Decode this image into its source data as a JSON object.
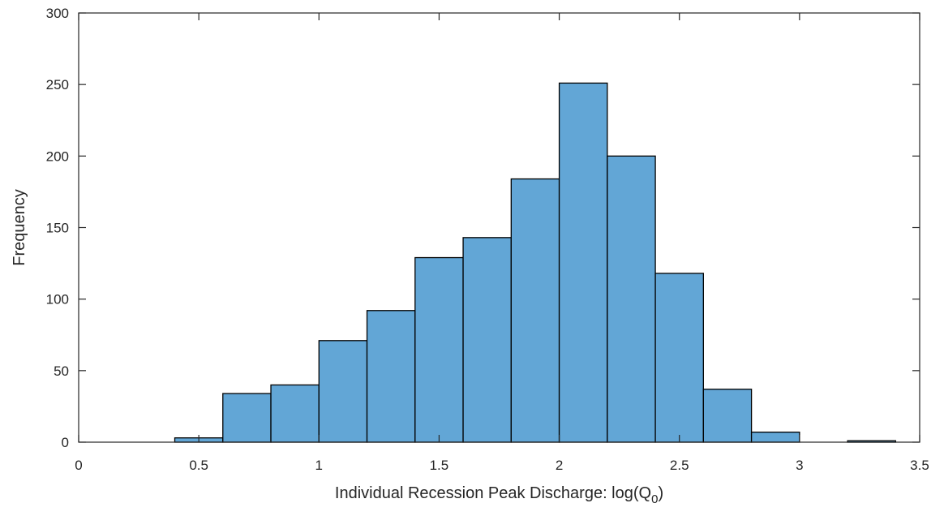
{
  "chart_data": {
    "type": "histogram",
    "title": "",
    "xlabel": {
      "main": "Individual Recession Peak Discharge: log(Q",
      "sub": "0",
      "close": ")"
    },
    "ylabel": "Frequency",
    "xlim": [
      0,
      3.5
    ],
    "ylim": [
      0,
      300
    ],
    "xticks": [
      0,
      0.5,
      1,
      1.5,
      2,
      2.5,
      3,
      3.5
    ],
    "xtick_labels": [
      "0",
      "0.5",
      "1",
      "1.5",
      "2",
      "2.5",
      "3",
      "3.5"
    ],
    "yticks": [
      0,
      50,
      100,
      150,
      200,
      250,
      300
    ],
    "ytick_labels": [
      "0",
      "50",
      "100",
      "150",
      "200",
      "250",
      "300"
    ],
    "bin_width": 0.2,
    "bins": [
      {
        "x0": 0.4,
        "x1": 0.6,
        "count": 3
      },
      {
        "x0": 0.6,
        "x1": 0.8,
        "count": 34
      },
      {
        "x0": 0.8,
        "x1": 1.0,
        "count": 40
      },
      {
        "x0": 1.0,
        "x1": 1.2,
        "count": 71
      },
      {
        "x0": 1.2,
        "x1": 1.4,
        "count": 92
      },
      {
        "x0": 1.4,
        "x1": 1.6,
        "count": 129
      },
      {
        "x0": 1.6,
        "x1": 1.8,
        "count": 143
      },
      {
        "x0": 1.8,
        "x1": 2.0,
        "count": 184
      },
      {
        "x0": 2.0,
        "x1": 2.2,
        "count": 251
      },
      {
        "x0": 2.2,
        "x1": 2.4,
        "count": 200
      },
      {
        "x0": 2.4,
        "x1": 2.6,
        "count": 118
      },
      {
        "x0": 2.6,
        "x1": 2.8,
        "count": 37
      },
      {
        "x0": 2.8,
        "x1": 3.0,
        "count": 7
      },
      {
        "x0": 3.0,
        "x1": 3.2,
        "count": 0
      },
      {
        "x0": 3.2,
        "x1": 3.4,
        "count": 1
      }
    ],
    "bar_color": "#62a6d6",
    "bar_edge_color": "#000000",
    "grid": false,
    "legend": "none"
  }
}
